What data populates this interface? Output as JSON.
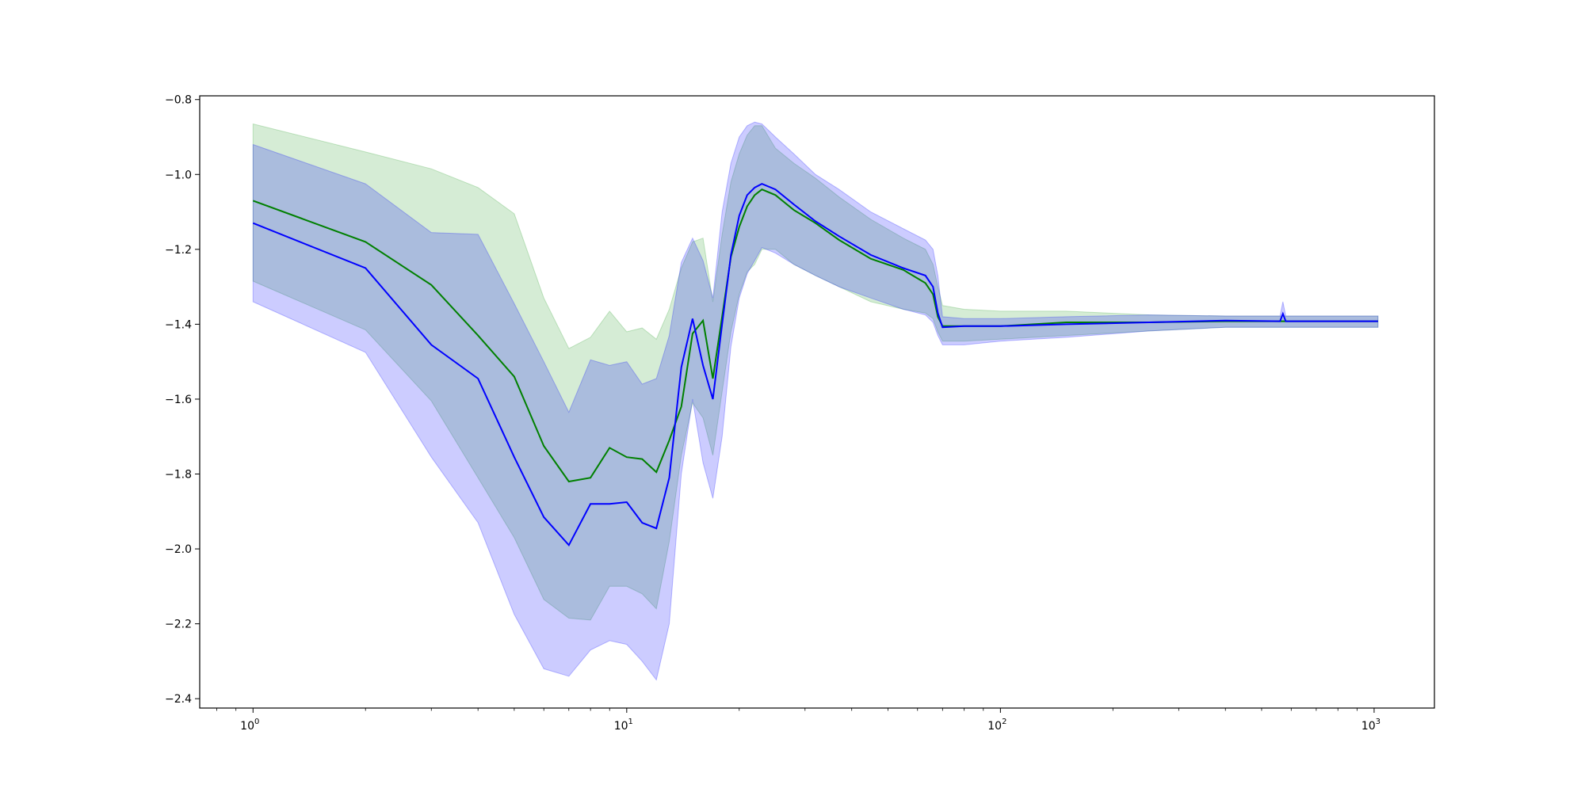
{
  "chart_data": {
    "type": "line",
    "title": "",
    "xlabel": "",
    "ylabel": "",
    "xscale": "log",
    "xlim": [
      0.72,
      1450
    ],
    "ylim": [
      -2.425,
      -0.79
    ],
    "grid": false,
    "x_ticks": [
      {
        "value": 1,
        "base": "10",
        "exp": "0"
      },
      {
        "value": 10,
        "base": "10",
        "exp": "1"
      },
      {
        "value": 100,
        "base": "10",
        "exp": "2"
      },
      {
        "value": 1000,
        "base": "10",
        "exp": "3"
      }
    ],
    "y_ticks": [
      {
        "value": -0.8,
        "label": "−0.8"
      },
      {
        "value": -1.0,
        "label": "−1.0"
      },
      {
        "value": -1.2,
        "label": "−1.2"
      },
      {
        "value": -1.4,
        "label": "−1.4"
      },
      {
        "value": -1.6,
        "label": "−1.6"
      },
      {
        "value": -1.8,
        "label": "−1.8"
      },
      {
        "value": -2.0,
        "label": "−2.0"
      },
      {
        "value": -2.2,
        "label": "−2.2"
      },
      {
        "value": -2.4,
        "label": "−2.4"
      }
    ],
    "series": [
      {
        "color": "#008000",
        "band_color": "#2ca02c",
        "x": [
          1,
          2,
          3,
          4,
          5,
          6,
          7,
          8,
          9,
          10,
          11,
          12,
          13,
          14,
          15,
          16,
          17,
          18,
          19,
          20,
          21,
          22,
          23,
          25,
          28,
          32,
          37,
          45,
          55,
          63,
          66,
          68,
          70,
          80,
          100,
          150,
          250,
          400,
          570,
          700,
          1024
        ],
        "values": [
          -1.07,
          -1.18,
          -1.295,
          -1.43,
          -1.54,
          -1.725,
          -1.82,
          -1.81,
          -1.73,
          -1.755,
          -1.76,
          -1.795,
          -1.71,
          -1.62,
          -1.425,
          -1.39,
          -1.545,
          -1.38,
          -1.22,
          -1.14,
          -1.085,
          -1.055,
          -1.04,
          -1.055,
          -1.095,
          -1.13,
          -1.175,
          -1.225,
          -1.255,
          -1.29,
          -1.32,
          -1.38,
          -1.405,
          -1.405,
          -1.405,
          -1.395,
          -1.395,
          -1.392,
          -1.392,
          -1.392,
          -1.392
        ],
        "upper": [
          -0.865,
          -0.94,
          -0.985,
          -1.035,
          -1.105,
          -1.33,
          -1.465,
          -1.435,
          -1.365,
          -1.42,
          -1.41,
          -1.44,
          -1.36,
          -1.25,
          -1.18,
          -1.17,
          -1.34,
          -1.16,
          -1.02,
          -0.945,
          -0.895,
          -0.87,
          -0.87,
          -0.93,
          -0.97,
          -1.01,
          -1.06,
          -1.12,
          -1.17,
          -1.2,
          -1.24,
          -1.3,
          -1.35,
          -1.36,
          -1.365,
          -1.365,
          -1.375,
          -1.378,
          -1.378,
          -1.378,
          -1.378
        ],
        "lower": [
          -1.285,
          -1.415,
          -1.605,
          -1.81,
          -1.97,
          -2.135,
          -2.185,
          -2.19,
          -2.1,
          -2.1,
          -2.12,
          -2.16,
          -1.98,
          -1.75,
          -1.61,
          -1.65,
          -1.75,
          -1.58,
          -1.42,
          -1.32,
          -1.26,
          -1.24,
          -1.2,
          -1.2,
          -1.24,
          -1.27,
          -1.3,
          -1.34,
          -1.36,
          -1.37,
          -1.385,
          -1.42,
          -1.445,
          -1.445,
          -1.44,
          -1.43,
          -1.418,
          -1.408,
          -1.408,
          -1.408,
          -1.408
        ]
      },
      {
        "color": "#0000ff",
        "band_color": "#0000ff",
        "x": [
          1,
          2,
          3,
          4,
          5,
          6,
          7,
          8,
          9,
          10,
          11,
          12,
          13,
          14,
          15,
          16,
          17,
          18,
          19,
          20,
          21,
          22,
          23,
          25,
          28,
          32,
          37,
          45,
          55,
          63,
          66,
          68,
          70,
          80,
          100,
          150,
          250,
          400,
          560,
          570,
          580,
          700,
          1024
        ],
        "values": [
          -1.13,
          -1.25,
          -1.455,
          -1.545,
          -1.755,
          -1.915,
          -1.99,
          -1.88,
          -1.88,
          -1.875,
          -1.93,
          -1.945,
          -1.81,
          -1.515,
          -1.385,
          -1.51,
          -1.6,
          -1.4,
          -1.215,
          -1.11,
          -1.055,
          -1.035,
          -1.025,
          -1.04,
          -1.08,
          -1.125,
          -1.165,
          -1.215,
          -1.25,
          -1.27,
          -1.3,
          -1.37,
          -1.408,
          -1.405,
          -1.405,
          -1.4,
          -1.395,
          -1.39,
          -1.392,
          -1.372,
          -1.392,
          -1.392,
          -1.392
        ],
        "upper": [
          -0.92,
          -1.025,
          -1.155,
          -1.16,
          -1.345,
          -1.5,
          -1.635,
          -1.495,
          -1.51,
          -1.5,
          -1.56,
          -1.545,
          -1.43,
          -1.235,
          -1.17,
          -1.23,
          -1.33,
          -1.1,
          -0.97,
          -0.9,
          -0.87,
          -0.86,
          -0.865,
          -0.9,
          -0.945,
          -1.0,
          -1.04,
          -1.1,
          -1.145,
          -1.175,
          -1.2,
          -1.27,
          -1.38,
          -1.385,
          -1.385,
          -1.38,
          -1.375,
          -1.378,
          -1.378,
          -1.34,
          -1.378,
          -1.378,
          -1.378
        ],
        "lower": [
          -1.34,
          -1.475,
          -1.755,
          -1.93,
          -2.175,
          -2.32,
          -2.34,
          -2.27,
          -2.245,
          -2.255,
          -2.3,
          -2.35,
          -2.2,
          -1.8,
          -1.6,
          -1.77,
          -1.865,
          -1.7,
          -1.46,
          -1.33,
          -1.265,
          -1.23,
          -1.195,
          -1.21,
          -1.24,
          -1.27,
          -1.3,
          -1.33,
          -1.36,
          -1.375,
          -1.395,
          -1.43,
          -1.455,
          -1.455,
          -1.445,
          -1.435,
          -1.418,
          -1.408,
          -1.408,
          -1.408,
          -1.408,
          -1.408,
          -1.408
        ]
      }
    ]
  }
}
